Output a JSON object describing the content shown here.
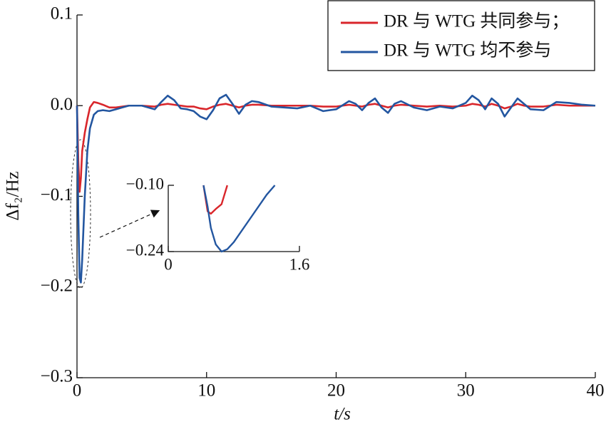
{
  "chart_data": [
    {
      "type": "line",
      "xlabel": "t/s",
      "ylabel": "Δf₂/Hz",
      "x": [
        0,
        0.1,
        0.2,
        0.3,
        0.4,
        0.6,
        0.8,
        1.0,
        1.3,
        1.6,
        2,
        2.5,
        3,
        3.5,
        4,
        5,
        6,
        6.5,
        7,
        7.5,
        8,
        8.5,
        9,
        9.5,
        10,
        10.5,
        11,
        11.5,
        12,
        12.5,
        13,
        13.5,
        14,
        15,
        16,
        17,
        18,
        19,
        20,
        21,
        21.5,
        22,
        22.5,
        23,
        23.5,
        24,
        24.5,
        25,
        26,
        27,
        28,
        29,
        30,
        30.5,
        31,
        31.5,
        32,
        32.5,
        33,
        33.5,
        34,
        34.5,
        35,
        36,
        37,
        38,
        39,
        40
      ],
      "series": [
        {
          "name": "DR 与 WTG 共同参与；",
          "color": "#d9262b",
          "values": [
            0,
            -0.06,
            -0.095,
            -0.08,
            -0.05,
            -0.03,
            -0.015,
            -0.002,
            0.004,
            0.003,
            0.001,
            -0.002,
            -0.002,
            -0.001,
            0,
            0,
            -0.001,
            0.001,
            0.002,
            0.001,
            0,
            -0.001,
            -0.001,
            -0.003,
            -0.004,
            -0.001,
            0.001,
            0.002,
            0,
            -0.002,
            0,
            0.001,
            0.001,
            0,
            0,
            0,
            0,
            -0.001,
            -0.001,
            0.001,
            0,
            -0.001,
            0.001,
            0.002,
            0,
            -0.002,
            0,
            0.001,
            0,
            -0.001,
            0,
            -0.001,
            0,
            0.002,
            0.001,
            -0.001,
            0.002,
            0,
            -0.003,
            -0.001,
            0.002,
            0,
            -0.001,
            -0.001,
            0.001,
            0,
            0,
            0
          ]
        },
        {
          "name": "DR 与 WTG 均不参与",
          "color": "#2356a0",
          "values": [
            0,
            -0.12,
            -0.19,
            -0.195,
            -0.17,
            -0.1,
            -0.05,
            -0.025,
            -0.01,
            -0.006,
            -0.005,
            -0.006,
            -0.004,
            -0.002,
            0,
            0,
            -0.004,
            0.004,
            0.011,
            0.006,
            -0.003,
            -0.004,
            -0.006,
            -0.012,
            -0.015,
            -0.005,
            0.008,
            0.012,
            0.002,
            -0.009,
            0.001,
            0.005,
            0.004,
            -0.001,
            -0.002,
            -0.003,
            0,
            -0.006,
            -0.004,
            0.005,
            0.002,
            -0.005,
            0.003,
            0.008,
            -0.002,
            -0.008,
            0.002,
            0.005,
            -0.002,
            -0.005,
            -0.001,
            -0.003,
            0.003,
            0.011,
            0.006,
            -0.004,
            0.008,
            0.002,
            -0.012,
            -0.002,
            0.008,
            0.002,
            -0.004,
            -0.005,
            0.004,
            0.003,
            0.001,
            0
          ]
        }
      ],
      "xlim": [
        0,
        40
      ],
      "xticks": [
        0,
        10,
        20,
        30,
        40
      ],
      "ylim": [
        -0.3,
        0.1
      ],
      "yticks": [
        {
          "value": -0.3,
          "label": "−0.3"
        },
        {
          "value": -0.2,
          "label": "−0.2"
        },
        {
          "value": -0.1,
          "label": "−0.1"
        },
        {
          "value": 0,
          "label": "0.0"
        },
        0.1
      ],
      "legend": "upper right"
    },
    {
      "type": "line",
      "x": [
        0.43,
        0.48,
        0.52,
        0.58,
        0.65,
        0.72,
        0.8,
        1.0,
        1.2,
        1.3
      ],
      "series": [
        {
          "color": "#d9262b",
          "values": [
            -0.1,
            -0.155,
            -0.16,
            -0.15,
            -0.14,
            -0.1,
            null,
            null,
            null,
            null
          ]
        },
        {
          "color": "#2356a0",
          "values": [
            -0.1,
            -0.145,
            -0.19,
            -0.225,
            -0.24,
            -0.235,
            -0.22,
            -0.17,
            -0.12,
            -0.1
          ]
        }
      ],
      "xlim": [
        0,
        1.6
      ],
      "xticks": [
        0,
        1.6
      ],
      "ylim": [
        -0.24,
        -0.1
      ],
      "yticks": [
        {
          "value": -0.24,
          "label": "−0.24"
        },
        {
          "value": -0.1,
          "label": "−0.10"
        }
      ]
    }
  ]
}
